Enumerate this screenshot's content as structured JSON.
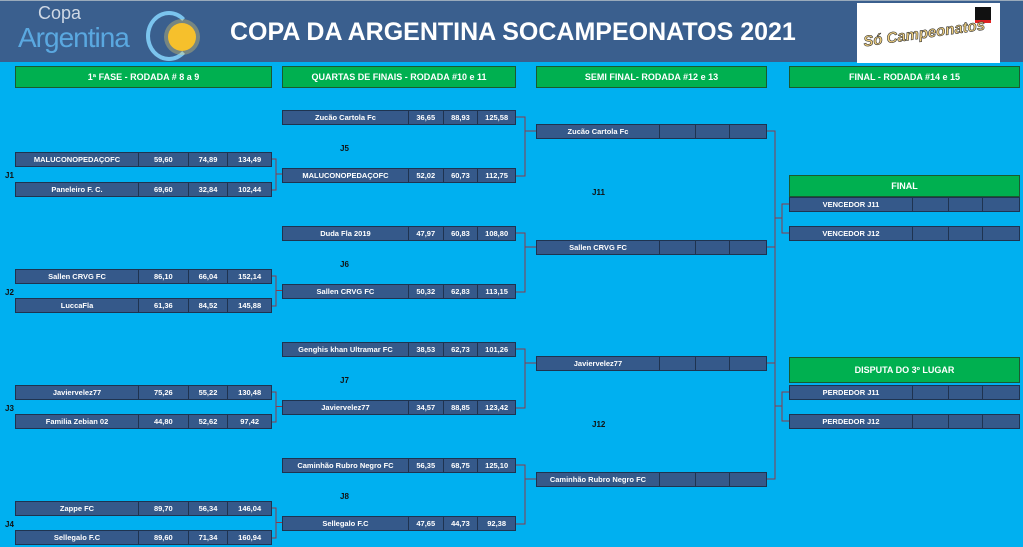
{
  "header": {
    "title": "COPA DA ARGENTINA SOCAMPEONATOS 2021",
    "logo_left": "Copa Argentina",
    "logo_right": "Só Campeonatos"
  },
  "colors": {
    "background": "#00b0f0",
    "banner": "#3a5f8e",
    "cell": "#35598a",
    "header_green": "#00b050",
    "connector": "#8b3a4a"
  },
  "columns": [
    "1ª FASE - RODADA # 8 a 9",
    "QUARTAS DE FINAIS - RODADA #10 e 11",
    "SEMI FINAL- RODADA #12 e 13",
    "FINAL - RODADA #14 e 15"
  ],
  "round1": [
    {
      "label": "J1",
      "teams": [
        [
          "MALUCONOPEDAÇOFC",
          "59,60",
          "74,89",
          "134,49"
        ],
        [
          "Paneleiro F. C.",
          "69,60",
          "32,84",
          "102,44"
        ]
      ]
    },
    {
      "label": "J2",
      "teams": [
        [
          "Sallen CRVG FC",
          "86,10",
          "66,04",
          "152,14"
        ],
        [
          "LuccaFla",
          "61,36",
          "84,52",
          "145,88"
        ]
      ]
    },
    {
      "label": "J3",
      "teams": [
        [
          "Javiervelez77",
          "75,26",
          "55,22",
          "130,48"
        ],
        [
          "Familia Zebian 02",
          "44,80",
          "52,62",
          "97,42"
        ]
      ]
    },
    {
      "label": "J4",
      "teams": [
        [
          "Zappe FC",
          "89,70",
          "56,34",
          "146,04"
        ],
        [
          "Sellegalo F.C",
          "89,60",
          "71,34",
          "160,94"
        ]
      ]
    }
  ],
  "quarters": [
    {
      "label": "J5",
      "teams": [
        [
          "Zucão Cartola Fc",
          "36,65",
          "88,93",
          "125,58"
        ],
        [
          "MALUCONOPEDAÇOFC",
          "52,02",
          "60,73",
          "112,75"
        ]
      ]
    },
    {
      "label": "J6",
      "teams": [
        [
          "Duda Fla 2019",
          "47,97",
          "60,83",
          "108,80"
        ],
        [
          "Sallen CRVG FC",
          "50,32",
          "62,83",
          "113,15"
        ]
      ]
    },
    {
      "label": "J7",
      "teams": [
        [
          "Genghis khan Ultramar FC",
          "38,53",
          "62,73",
          "101,26"
        ],
        [
          "Javiervelez77",
          "34,57",
          "88,85",
          "123,42"
        ]
      ]
    },
    {
      "label": "J8",
      "teams": [
        [
          "Caminhão Rubro Negro FC",
          "56,35",
          "68,75",
          "125,10"
        ],
        [
          "Sellegalo F.C",
          "47,65",
          "44,73",
          "92,38"
        ]
      ]
    }
  ],
  "semis": {
    "labels": [
      "J11",
      "J12"
    ],
    "teams": [
      [
        "Zucão Cartola Fc",
        "",
        "",
        ""
      ],
      [
        "Sallen CRVG FC",
        "",
        "",
        ""
      ],
      [
        "Javiervelez77",
        "",
        "",
        ""
      ],
      [
        "Caminhão Rubro Negro FC",
        "",
        "",
        ""
      ]
    ]
  },
  "final": {
    "title": "FINAL",
    "teams": [
      [
        "VENCEDOR J11",
        "",
        "",
        ""
      ],
      [
        "VENCEDOR J12",
        "",
        "",
        ""
      ]
    ]
  },
  "third": {
    "title": "DISPUTA DO 3º LUGAR",
    "teams": [
      [
        "PERDEDOR J11",
        "",
        "",
        ""
      ],
      [
        "PERDEDOR J12",
        "",
        "",
        ""
      ]
    ]
  }
}
